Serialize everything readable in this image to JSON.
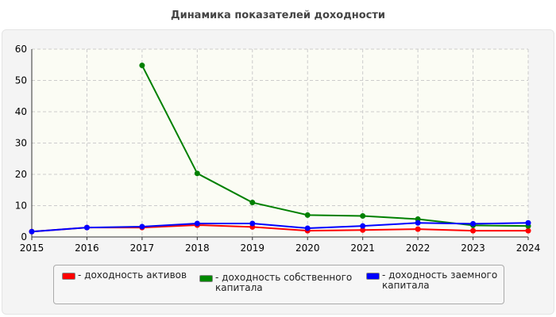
{
  "chart_data": {
    "type": "line",
    "title": "Динамика показателей доходности",
    "x": [
      2015,
      2016,
      2017,
      2018,
      2019,
      2020,
      2021,
      2022,
      2023,
      2024
    ],
    "ylim": [
      0,
      60
    ],
    "yticks": [
      0,
      10,
      20,
      30,
      40,
      50,
      60
    ],
    "grid": true,
    "legend_position": "bottom",
    "series": [
      {
        "name": "- доходность активов",
        "color": "#ff0000",
        "values": [
          1.7,
          3.0,
          3.0,
          3.8,
          3.2,
          2.0,
          2.2,
          2.5,
          2.0,
          2.0
        ]
      },
      {
        "name": "- доходность собственного капитала",
        "color": "#008000",
        "values": [
          null,
          null,
          54.8,
          20.3,
          11.0,
          7.0,
          6.7,
          5.7,
          3.7,
          3.5
        ]
      },
      {
        "name": "- доходность заемного капитала",
        "color": "#0000ff",
        "values": [
          1.7,
          3.0,
          3.3,
          4.3,
          4.3,
          2.8,
          3.5,
          4.5,
          4.2,
          4.5
        ]
      }
    ]
  }
}
